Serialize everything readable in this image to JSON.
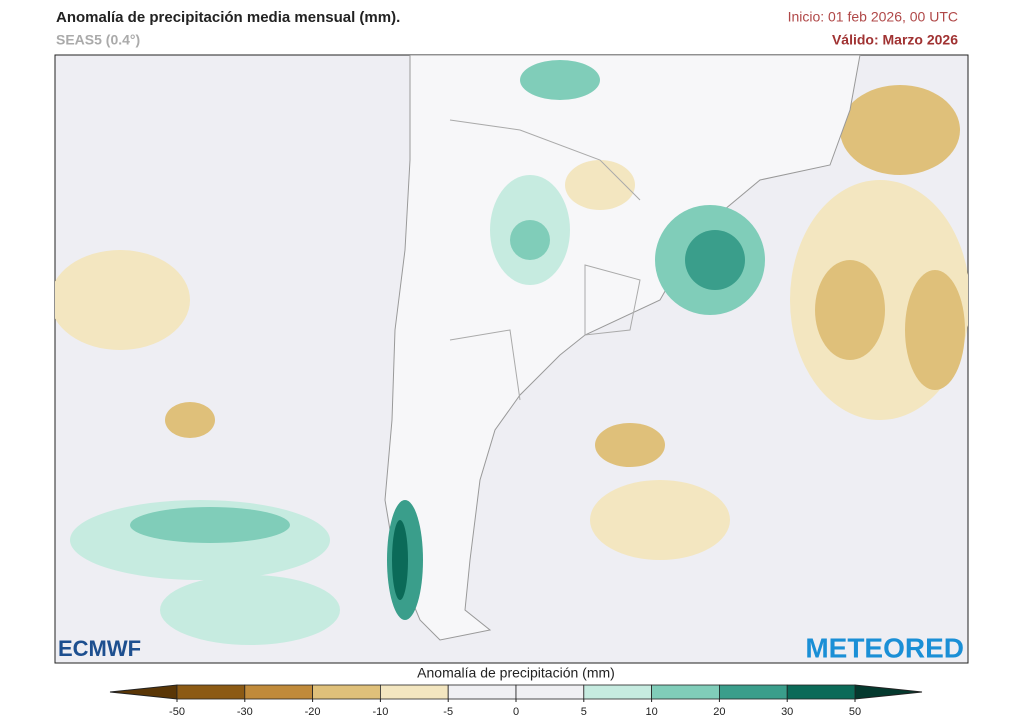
{
  "header": {
    "title": "Anomalía de precipitación media mensual (mm).",
    "model": "SEAS5 (0.4°)",
    "init": "Inicio: 01 feb 2026, 00 UTC",
    "valid": "Válido: Marzo 2026"
  },
  "logos": {
    "left": "ECMWF",
    "right": "METEORED"
  },
  "legend": {
    "title": "Anomalía de precipitación (mm)",
    "ticks": [
      -50,
      -30,
      -20,
      -10,
      -5,
      0,
      5,
      10,
      20,
      30,
      50
    ],
    "colors": [
      "#8c5a14",
      "#c08a3a",
      "#dfc07a",
      "#f3e6c0",
      "#f0f0f3",
      "#f0f0f3",
      "#c6ebe0",
      "#80cdb9",
      "#3a9e8b",
      "#0b6a58"
    ],
    "under_color": "#5a3606",
    "over_color": "#04392e"
  }
}
